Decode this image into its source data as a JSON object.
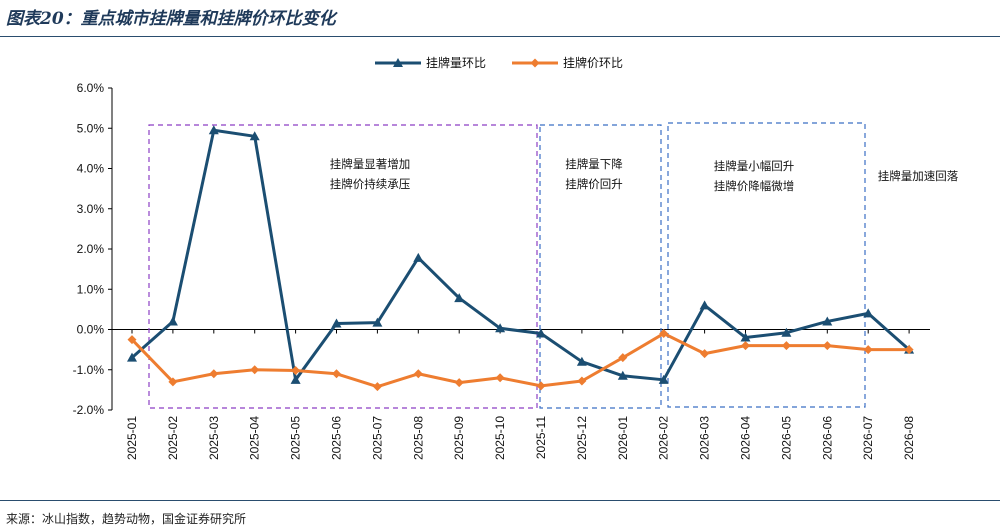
{
  "header": {
    "title": "图表20：重点城市挂牌量和挂牌价环比变化"
  },
  "footer": {
    "source": "来源：冰山指数，趋势动物，国金证券研究所"
  },
  "chart_data": {
    "type": "line",
    "categories": [
      "2025-01",
      "2025-02",
      "2025-03",
      "2025-04",
      "2025-05",
      "2025-06",
      "2025-07",
      "2025-08",
      "2025-09",
      "2025-10",
      "2025-11",
      "2025-12",
      "2026-01",
      "2026-02",
      "2026-03",
      "2026-04",
      "2026-05",
      "2026-06",
      "2026-07",
      "2026-08"
    ],
    "y_ticks": [
      "6.0%",
      "5.0%",
      "4.0%",
      "3.0%",
      "2.0%",
      "1.0%",
      "0.0%",
      "-1.0%",
      "-2.0%"
    ],
    "ylim": [
      -2,
      6
    ],
    "legend_position": "top",
    "series": [
      {
        "name": "挂牌量环比",
        "color": "#1b4e72",
        "marker": "triangle",
        "values": [
          -0.7,
          0.2,
          4.95,
          4.8,
          -1.25,
          0.15,
          0.17,
          1.78,
          0.78,
          0.03,
          -0.1,
          -0.8,
          -1.15,
          -1.25,
          0.6,
          -0.2,
          -0.08,
          0.2,
          0.4,
          -0.5
        ]
      },
      {
        "name": "挂牌价环比",
        "color": "#ee7d30",
        "marker": "diamond",
        "values": [
          -0.25,
          -1.3,
          -1.1,
          -1.0,
          -1.02,
          -1.1,
          -1.42,
          -1.1,
          -1.32,
          -1.2,
          -1.4,
          -1.28,
          -0.7,
          -0.1,
          -0.6,
          -0.4,
          -0.4,
          -0.4,
          -0.5,
          -0.5
        ]
      }
    ],
    "annotations": [
      {
        "lines": [
          "挂牌量显著增加",
          "挂牌价持续承压"
        ],
        "color": "#8c3fc4"
      },
      {
        "lines": [
          "挂牌量下降",
          "挂牌价回升"
        ],
        "color": "#3b6fc4"
      },
      {
        "lines": [
          "挂牌量小幅回升",
          "挂牌价降幅微增"
        ],
        "color": "#3b6fc4"
      },
      {
        "lines": [
          "挂牌量加速回落"
        ],
        "color": null
      }
    ]
  }
}
